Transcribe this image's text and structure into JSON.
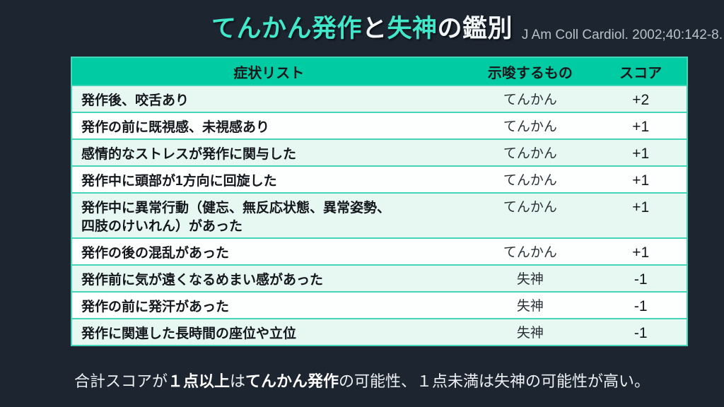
{
  "title": {
    "segments": [
      {
        "text": "てんかん発作",
        "style": "teal"
      },
      {
        "text": "と",
        "style": "white"
      },
      {
        "text": "失神",
        "style": "teal"
      },
      {
        "text": "の鑑別",
        "style": "white"
      }
    ],
    "citation": "J Am Coll Cardiol. 2002;40:142-8."
  },
  "table": {
    "headers": [
      "症状リスト",
      "示唆するもの",
      "スコア"
    ],
    "rows": [
      {
        "symptom": "発作後、咬舌あり",
        "suggests": "てんかん",
        "score": "+2"
      },
      {
        "symptom": "発作の前に既視感、未視感あり",
        "suggests": "てんかん",
        "score": "+1"
      },
      {
        "symptom": "感情的なストレスが発作に関与した",
        "suggests": "てんかん",
        "score": "+1"
      },
      {
        "symptom": "発作中に頭部が1方向に回旋した",
        "suggests": "てんかん",
        "score": "+1"
      },
      {
        "symptom": "発作中に異常行動（健忘、無反応状態、異常姿勢、\n四肢のけいれん）があった",
        "suggests": "てんかん",
        "score": "+1"
      },
      {
        "symptom": "発作の後の混乱があった",
        "suggests": "てんかん",
        "score": "+1"
      },
      {
        "symptom": "発作前に気が遠くなるめまい感があった",
        "suggests": "失神",
        "score": "-1"
      },
      {
        "symptom": "発作の前に発汗があった",
        "suggests": "失神",
        "score": "-1"
      },
      {
        "symptom": "発作に関連した長時間の座位や立位",
        "suggests": "失神",
        "score": "-1"
      }
    ]
  },
  "footer": {
    "segments": [
      {
        "text": "合計スコアが",
        "bold": false
      },
      {
        "text": "１点以上",
        "bold": true
      },
      {
        "text": "は",
        "bold": false
      },
      {
        "text": "てんかん発作",
        "bold": true
      },
      {
        "text": "の可能性、１点未満は失神の可能性が高い。",
        "bold": false
      }
    ]
  },
  "colors": {
    "background": "#1c2530",
    "header_teal": "#00cba3",
    "title_teal": "#41e8ca",
    "row_tint": "#e7f7f2",
    "row_white": "#fdfefe",
    "row_border": "#43d6b9",
    "citation_gray": "#b9c0c7",
    "footer_text": "#edf0f2"
  }
}
